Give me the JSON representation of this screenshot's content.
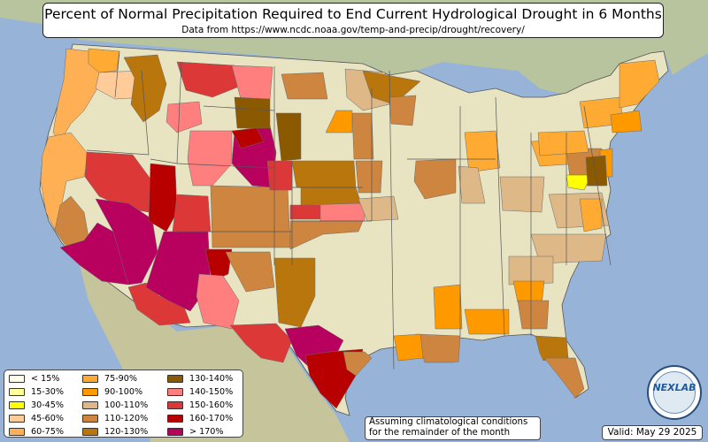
{
  "header": {
    "title": "Percent of Normal Precipitation Required to End Current Hydrological Drought in 6 Months",
    "subtitle": "Data from https://www.ncdc.noaa.gov/temp-and-precip/drought/recovery/"
  },
  "legend": {
    "items": [
      {
        "label": "< 15%",
        "color": "#ffffe8"
      },
      {
        "label": "15-30%",
        "color": "#ffff99"
      },
      {
        "label": "30-45%",
        "color": "#ffff00"
      },
      {
        "label": "45-60%",
        "color": "#ffcc99"
      },
      {
        "label": "60-75%",
        "color": "#ffb055"
      },
      {
        "label": "75-90%",
        "color": "#ffaa33"
      },
      {
        "label": "90-100%",
        "color": "#ff9900"
      },
      {
        "label": "100-110%",
        "color": "#deb887"
      },
      {
        "label": "110-120%",
        "color": "#cd853f"
      },
      {
        "label": "120-130%",
        "color": "#b8760c"
      },
      {
        "label": "130-140%",
        "color": "#8b5a00"
      },
      {
        "label": "140-150%",
        "color": "#ff7f7f"
      },
      {
        "label": "150-160%",
        "color": "#dd3838"
      },
      {
        "label": "160-170%",
        "color": "#b80000"
      },
      {
        "label": "> 170%",
        "color": "#b8005f"
      }
    ]
  },
  "note": {
    "line1": "Assuming climatological conditions",
    "line2": "for the remainder of the month"
  },
  "valid_label": "Valid: May 29 2025",
  "logo": {
    "text": "NEXLAB",
    "icon": "nexlab-globe-logo"
  },
  "colors": {
    "ocean": "#97b4d8",
    "land_foreign": "#bcc7a6",
    "land_usa": "#e8e4c2",
    "border": "#6a6a6a"
  }
}
